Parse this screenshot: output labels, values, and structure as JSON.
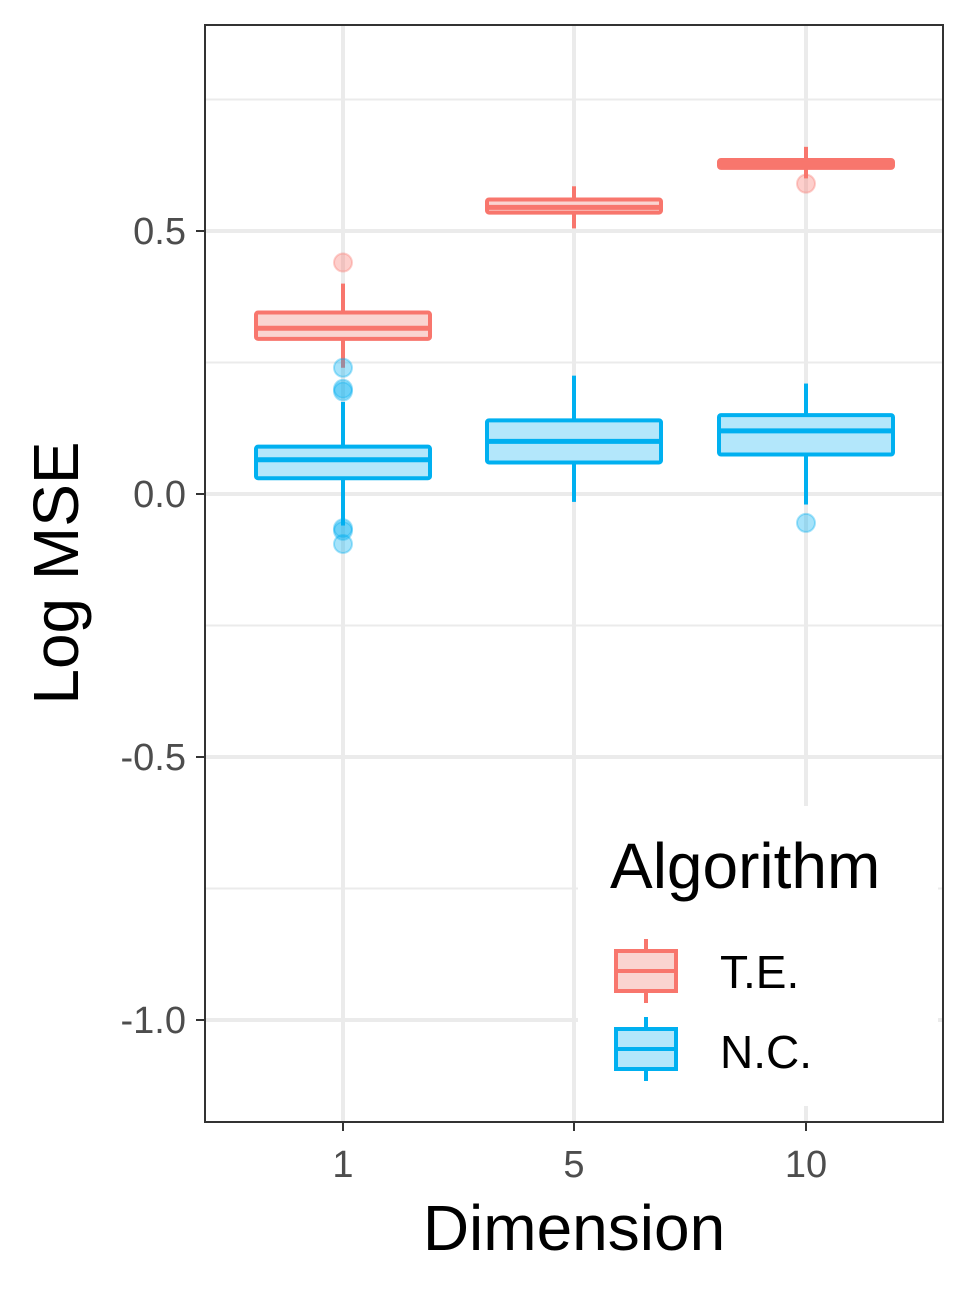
{
  "chart_data": {
    "type": "boxplot",
    "xlabel": "Dimension",
    "ylabel": "Log MSE",
    "categories": [
      "1",
      "5",
      "10"
    ],
    "ylim": [
      -1.19,
      0.89
    ],
    "yticks": [
      -1.0,
      -0.5,
      0.0,
      0.5
    ],
    "ytick_labels": [
      "-1.0",
      "-0.5",
      "0.0",
      "0.5"
    ],
    "grid": true,
    "legend": {
      "title": "Algorithm",
      "position": "bottom-right",
      "entries": [
        "T.E.",
        "N.C."
      ]
    },
    "series": [
      {
        "name": "T.E.",
        "color": "#F8766D",
        "fill": "#FAD4D0",
        "boxes": [
          {
            "category": "1",
            "whisker_low": 0.24,
            "q1": 0.295,
            "median": 0.315,
            "q3": 0.345,
            "whisker_high": 0.4,
            "outliers": [
              0.44
            ]
          },
          {
            "category": "5",
            "whisker_low": 0.505,
            "q1": 0.535,
            "median": 0.545,
            "q3": 0.56,
            "whisker_high": 0.585,
            "outliers": []
          },
          {
            "category": "10",
            "whisker_low": 0.6,
            "q1": 0.62,
            "median": 0.627,
            "q3": 0.635,
            "whisker_high": 0.66,
            "outliers": [
              0.59
            ]
          }
        ]
      },
      {
        "name": "N.C.",
        "color": "#00B0F0",
        "fill": "#B3E7FB",
        "boxes": [
          {
            "category": "1",
            "whisker_low": -0.06,
            "q1": 0.03,
            "median": 0.065,
            "q3": 0.09,
            "whisker_high": 0.175,
            "outliers": [
              0.24,
              0.2,
              0.195,
              -0.065,
              -0.07,
              -0.095
            ]
          },
          {
            "category": "5",
            "whisker_low": -0.015,
            "q1": 0.06,
            "median": 0.1,
            "q3": 0.14,
            "whisker_high": 0.225,
            "outliers": []
          },
          {
            "category": "10",
            "whisker_low": -0.02,
            "q1": 0.075,
            "median": 0.12,
            "q3": 0.15,
            "whisker_high": 0.21,
            "outliers": [
              -0.055
            ]
          }
        ]
      }
    ]
  }
}
